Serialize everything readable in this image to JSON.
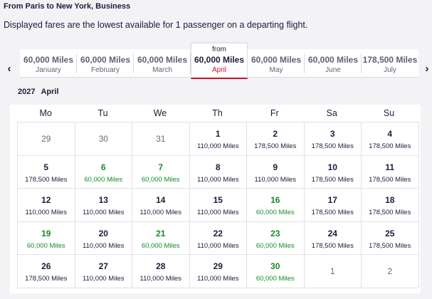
{
  "header": {
    "route": "From Paris to New York, Business",
    "notice": "Displayed fares are the lowest available for 1 passenger on a departing flight."
  },
  "nav": {
    "prev_icon": "‹",
    "next_icon": "›"
  },
  "months": [
    {
      "price": "60,000 Miles",
      "name": "January"
    },
    {
      "price": "60,000 Miles",
      "name": "February"
    },
    {
      "price": "60,000 Miles",
      "name": "March"
    },
    {
      "from": "from",
      "price": "60,000 Miles",
      "name": "April",
      "active": true
    },
    {
      "price": "60,000 Miles",
      "name": "May"
    },
    {
      "price": "60,000 Miles",
      "name": "June"
    },
    {
      "price": "178,500 Miles",
      "name": "July"
    }
  ],
  "calendar": {
    "year": "2027",
    "month": "April",
    "weekdays": [
      "Mo",
      "Tu",
      "We",
      "Th",
      "Fr",
      "Sa",
      "Su"
    ],
    "days": [
      {
        "d": "29",
        "out": true
      },
      {
        "d": "30",
        "out": true
      },
      {
        "d": "31",
        "out": true
      },
      {
        "d": "1",
        "p": "110,000 Miles"
      },
      {
        "d": "2",
        "p": "178,500 Miles"
      },
      {
        "d": "3",
        "p": "178,500 Miles"
      },
      {
        "d": "4",
        "p": "178,500 Miles"
      },
      {
        "d": "5",
        "p": "178,500 Miles"
      },
      {
        "d": "6",
        "p": "60,000 Miles",
        "low": true
      },
      {
        "d": "7",
        "p": "60,000 Miles",
        "low": true
      },
      {
        "d": "8",
        "p": "110,000 Miles"
      },
      {
        "d": "9",
        "p": "110,000 Miles"
      },
      {
        "d": "10",
        "p": "178,500 Miles"
      },
      {
        "d": "11",
        "p": "178,500 Miles"
      },
      {
        "d": "12",
        "p": "110,000 Miles"
      },
      {
        "d": "13",
        "p": "110,000 Miles"
      },
      {
        "d": "14",
        "p": "110,000 Miles"
      },
      {
        "d": "15",
        "p": "110,000 Miles"
      },
      {
        "d": "16",
        "p": "60,000 Miles",
        "low": true
      },
      {
        "d": "17",
        "p": "178,500 Miles"
      },
      {
        "d": "18",
        "p": "178,500 Miles"
      },
      {
        "d": "19",
        "p": "60,000 Miles",
        "low": true
      },
      {
        "d": "20",
        "p": "110,000 Miles"
      },
      {
        "d": "21",
        "p": "60,000 Miles",
        "low": true
      },
      {
        "d": "22",
        "p": "110,000 Miles"
      },
      {
        "d": "23",
        "p": "60,000 Miles",
        "low": true
      },
      {
        "d": "24",
        "p": "178,500 Miles"
      },
      {
        "d": "25",
        "p": "178,500 Miles"
      },
      {
        "d": "26",
        "p": "178,500 Miles"
      },
      {
        "d": "27",
        "p": "110,000 Miles"
      },
      {
        "d": "28",
        "p": "110,000 Miles"
      },
      {
        "d": "29",
        "p": "110,000 Miles"
      },
      {
        "d": "30",
        "p": "60,000 Miles",
        "low": true
      },
      {
        "d": "1",
        "out": true
      },
      {
        "d": "2",
        "out": true
      }
    ]
  },
  "colors": {
    "accent": "#c8102e",
    "low_fare": "#1a8a2a",
    "text": "#1b1b3a"
  }
}
